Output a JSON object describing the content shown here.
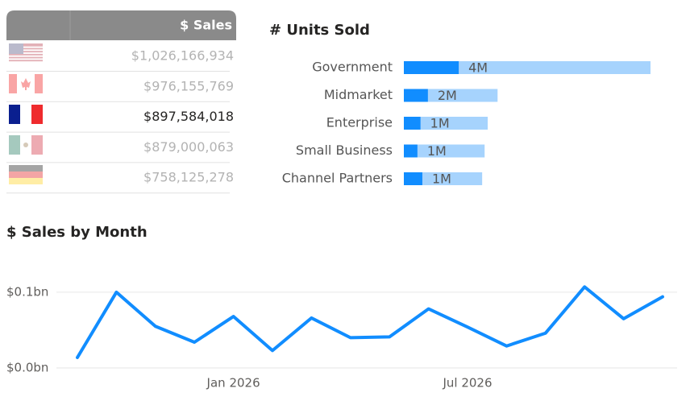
{
  "table": {
    "header": "$ Sales",
    "selected": 2,
    "rows": [
      "$1,026,166,934",
      "$976,155,769",
      "$897,584,018",
      "$879,000,063",
      "$758,125,278"
    ]
  },
  "chart_data": [
    {
      "type": "hbar",
      "title": "# Units Sold",
      "categories": [
        "Government",
        "Midmarket",
        "Enterprise",
        "Small Business",
        "Channel Partners"
      ],
      "series": [
        {
          "color": "#a6d3fd",
          "values": [
            4000000,
            1520000,
            1360000,
            1310000,
            1270000
          ],
          "value_labels": [
            "4M",
            "2M",
            "1M",
            "1M",
            "1M"
          ]
        },
        {
          "color": "#118dff",
          "values": [
            890000,
            390000,
            270000,
            220000,
            300000
          ]
        }
      ]
    },
    {
      "type": "line",
      "title": "$ Sales by Month",
      "color": "#118dff",
      "x": [
        "2025-09",
        "2025-10",
        "2025-11",
        "2025-12",
        "2026-01",
        "2026-02",
        "2026-03",
        "2026-04",
        "2026-05",
        "2026-06",
        "2026-07",
        "2026-08",
        "2026-09",
        "2026-10",
        "2026-11",
        "2026-12"
      ],
      "values": [
        13800000,
        100000000,
        55000000,
        34000000,
        68000000,
        23000000,
        66000000,
        40000000,
        41000000,
        78000000,
        54000000,
        29000000,
        46000000,
        107000000,
        65000000,
        94000000
      ],
      "xlim": [
        "2025-09",
        "2026-12"
      ],
      "xticks": [
        {
          "value": "2026-01",
          "label": "Jan 2026"
        },
        {
          "value": "2026-07",
          "label": "Jul 2026"
        }
      ],
      "ylim": [
        0,
        135000000
      ],
      "yticks": [
        {
          "value": 0,
          "label": "$0.0bn"
        },
        {
          "value": 100000000,
          "label": "$0.1bn"
        }
      ],
      "grid": true
    }
  ]
}
